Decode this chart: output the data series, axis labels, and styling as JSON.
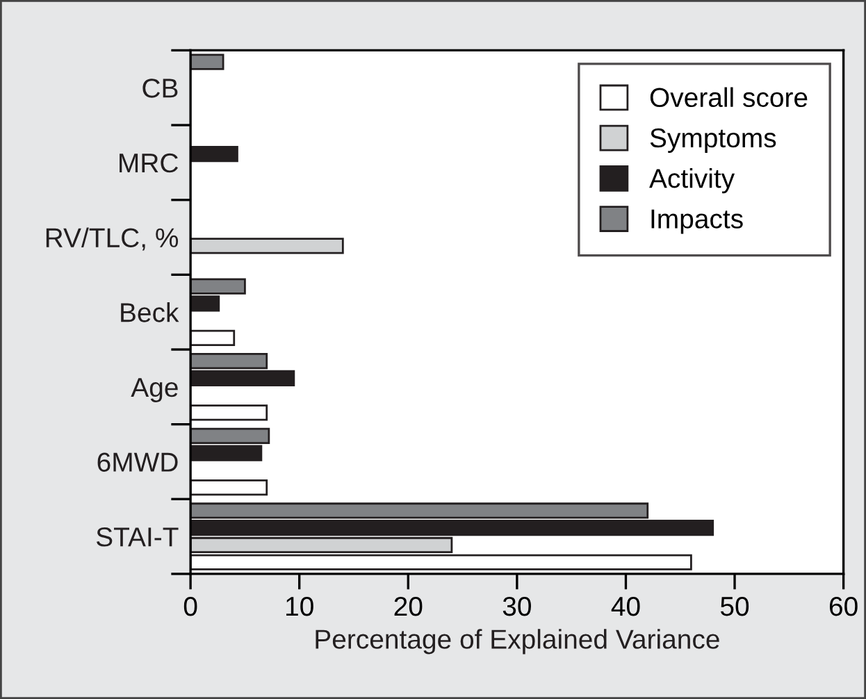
{
  "chart_data": {
    "type": "bar",
    "orientation": "horizontal",
    "xlabel": "Percentage of Explained Variance",
    "categories": [
      "CB",
      "MRC",
      "RV/TLC, %",
      "Beck",
      "Age",
      "6MWD",
      "STAI-T"
    ],
    "series": [
      {
        "name": "Overall score",
        "color": "#ffffff",
        "values": [
          null,
          null,
          null,
          4.0,
          7.0,
          7.0,
          46
        ]
      },
      {
        "name": "Symptoms",
        "color": "#d0d2d3",
        "values": [
          null,
          null,
          14,
          null,
          null,
          null,
          24
        ]
      },
      {
        "name": "Activity",
        "color": "#231f20",
        "values": [
          null,
          4.3,
          null,
          2.6,
          9.5,
          6.5,
          48
        ]
      },
      {
        "name": "Impacts",
        "color": "#808285",
        "values": [
          3.0,
          null,
          null,
          5.0,
          7.0,
          7.2,
          42
        ]
      }
    ],
    "xlim": [
      0,
      60
    ],
    "xticks": [
      0,
      10,
      20,
      30,
      40,
      50,
      60
    ],
    "legend": "top right",
    "grid": false
  }
}
